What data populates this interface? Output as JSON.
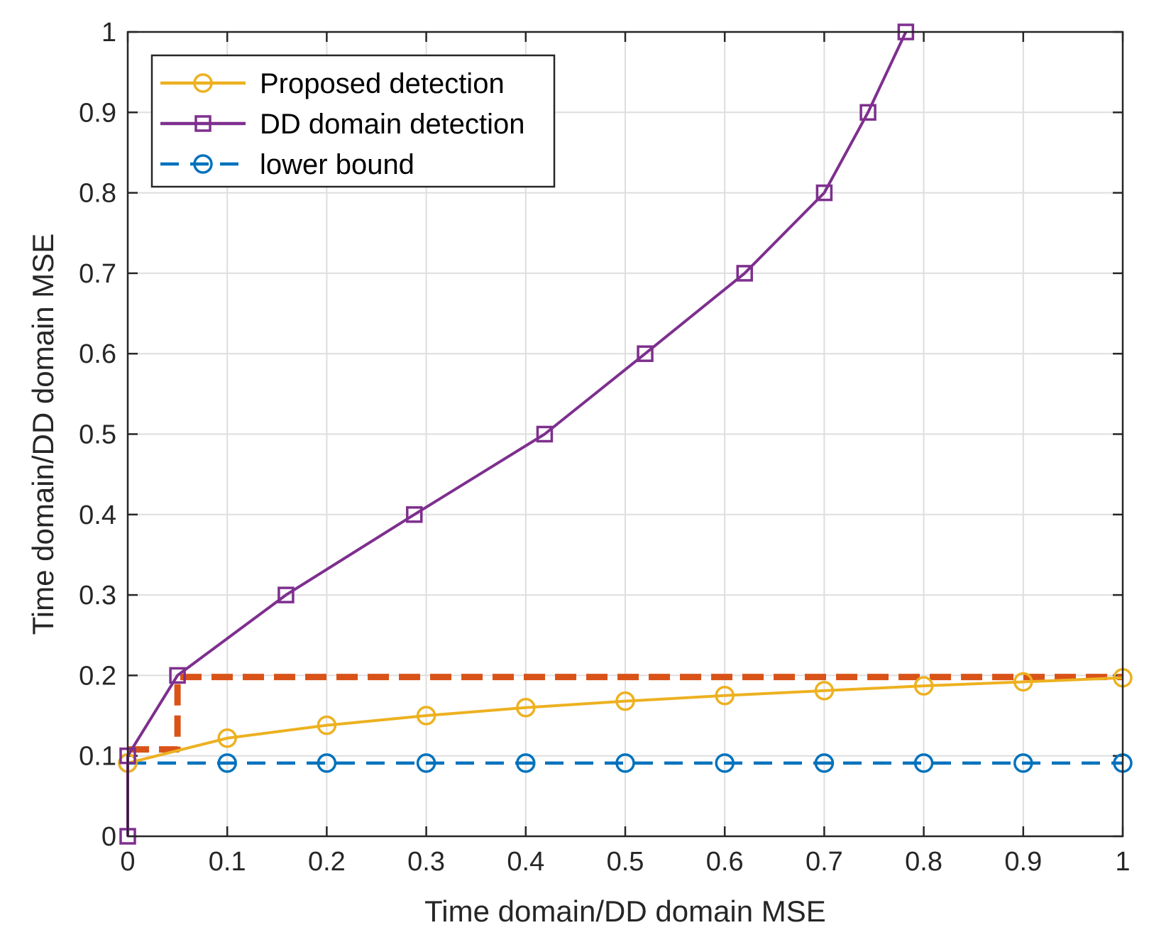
{
  "chart_data": {
    "type": "line",
    "title": "",
    "xlabel": "Time domain/DD domain MSE",
    "ylabel": "Time domain/DD domain MSE",
    "xlim": [
      0,
      1
    ],
    "ylim": [
      0,
      1
    ],
    "xticks": [
      0,
      0.1,
      0.2,
      0.3,
      0.4,
      0.5,
      0.6,
      0.7,
      0.8,
      0.9,
      1
    ],
    "yticks": [
      0,
      0.1,
      0.2,
      0.3,
      0.4,
      0.5,
      0.6,
      0.7,
      0.8,
      0.9,
      1
    ],
    "xtick_labels": [
      "0",
      "0.1",
      "0.2",
      "0.3",
      "0.4",
      "0.5",
      "0.6",
      "0.7",
      "0.8",
      "0.9",
      "1"
    ],
    "ytick_labels": [
      "0",
      "0.1",
      "0.2",
      "0.3",
      "0.4",
      "0.5",
      "0.6",
      "0.7",
      "0.8",
      "0.9",
      "1"
    ],
    "grid": true,
    "legend_position": "top-left",
    "series": [
      {
        "name": "Proposed detection",
        "color": "#EDB120",
        "line": "solid",
        "marker": "circle",
        "in_legend": true,
        "x": [
          0,
          0.1,
          0.2,
          0.3,
          0.4,
          0.5,
          0.6,
          0.7,
          0.8,
          0.9,
          1
        ],
        "y": [
          0.091,
          0.122,
          0.138,
          0.15,
          0.16,
          0.168,
          0.175,
          0.181,
          0.187,
          0.192,
          0.197
        ]
      },
      {
        "name": "DD domain detection",
        "color": "#7E2F8E",
        "line": "solid",
        "marker": "square",
        "in_legend": true,
        "x": [
          0,
          0,
          0.05,
          0.159,
          0.288,
          0.419,
          0.52,
          0.62,
          0.7,
          0.744,
          0.782
        ],
        "y": [
          0,
          0.1,
          0.2,
          0.3,
          0.4,
          0.5,
          0.6,
          0.7,
          0.8,
          0.9,
          1
        ]
      },
      {
        "name": "lower bound",
        "color": "#0072BD",
        "line": "dashed",
        "marker": "circle",
        "in_legend": true,
        "x": [
          0,
          0.1,
          0.2,
          0.3,
          0.4,
          0.5,
          0.6,
          0.7,
          0.8,
          0.9,
          1
        ],
        "y": [
          0.091,
          0.091,
          0.091,
          0.091,
          0.091,
          0.091,
          0.091,
          0.091,
          0.091,
          0.091,
          0.091
        ]
      },
      {
        "name": "annotation",
        "color": "#D95319",
        "line": "dashed-thick",
        "marker": "none",
        "in_legend": false,
        "x": [
          0,
          0.05,
          0.05,
          1
        ],
        "y": [
          0.108,
          0.108,
          0.198,
          0.198
        ]
      }
    ]
  }
}
